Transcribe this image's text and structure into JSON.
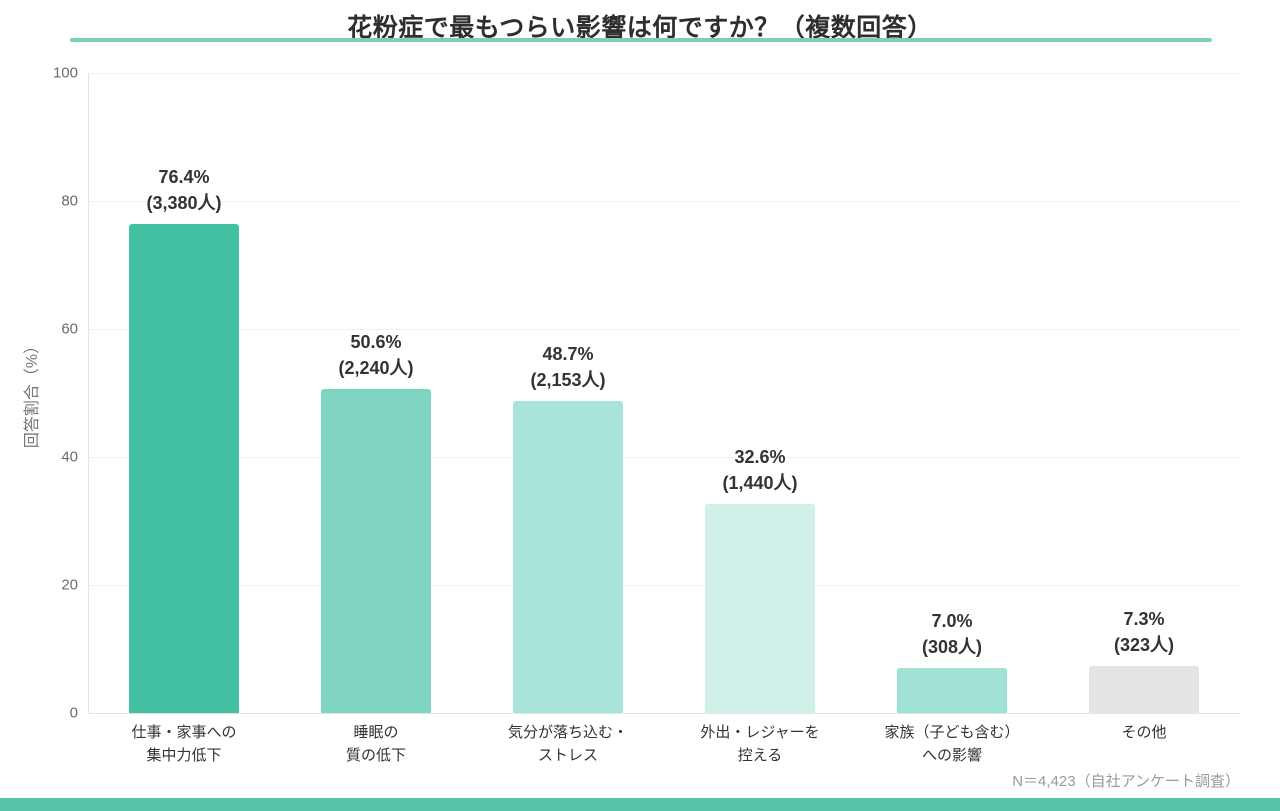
{
  "title": "花粉症で最もつらい影響は何ですか？（複数回答）",
  "footer": {
    "note": "N＝4,423（自社アンケート調査）"
  },
  "colors": {
    "accent_underline": "#7bceba",
    "accent_bottom_bar": "#58c3a8",
    "grid": "#f1f1f1",
    "axis": "#e4e4e4"
  },
  "chart_data": {
    "type": "bar",
    "title": "花粉症で最もつらい影響は何ですか？（複数回答）",
    "xlabel": "",
    "ylabel": "回答割合（%）",
    "ylim": [
      0,
      100
    ],
    "yticks": [
      0,
      20,
      40,
      60,
      80,
      100
    ],
    "grid": true,
    "legend": "none",
    "categories": [
      "仕事・家事への集中力低下",
      "睡眠の質の低下",
      "気分が落ち込む・ストレス",
      "外出・レジャーを控える",
      "家族（子ども含む）への影響",
      "その他"
    ],
    "category_lines": [
      [
        "仕事・家事への",
        "集中力低下"
      ],
      [
        "睡眠の",
        "質の低下"
      ],
      [
        "気分が落ち込む・",
        "ストレス"
      ],
      [
        "外出・レジャーを",
        "控える"
      ],
      [
        "家族（子ども含む）",
        "への影響"
      ],
      [
        "その他"
      ]
    ],
    "values": [
      76.4,
      50.6,
      48.7,
      32.6,
      7.0,
      7.3
    ],
    "counts": [
      3380,
      2240,
      2153,
      1440,
      308,
      323
    ],
    "value_labels": [
      [
        "76.4%",
        "(3,380人)"
      ],
      [
        "50.6%",
        "(2,240人)"
      ],
      [
        "48.7%",
        "(2,153人)"
      ],
      [
        "32.6%",
        "(1,440人)"
      ],
      [
        "7.0%",
        "(308人)"
      ],
      [
        "7.3%",
        "(323人)"
      ]
    ],
    "bar_colors": [
      "#44c1a3",
      "#7fd5c1",
      "#a9e4d8",
      "#d2f0ea",
      "#9fe1d3",
      "#e4e4e4"
    ],
    "sample_note": "N＝4,423（自社アンケート調査）"
  }
}
